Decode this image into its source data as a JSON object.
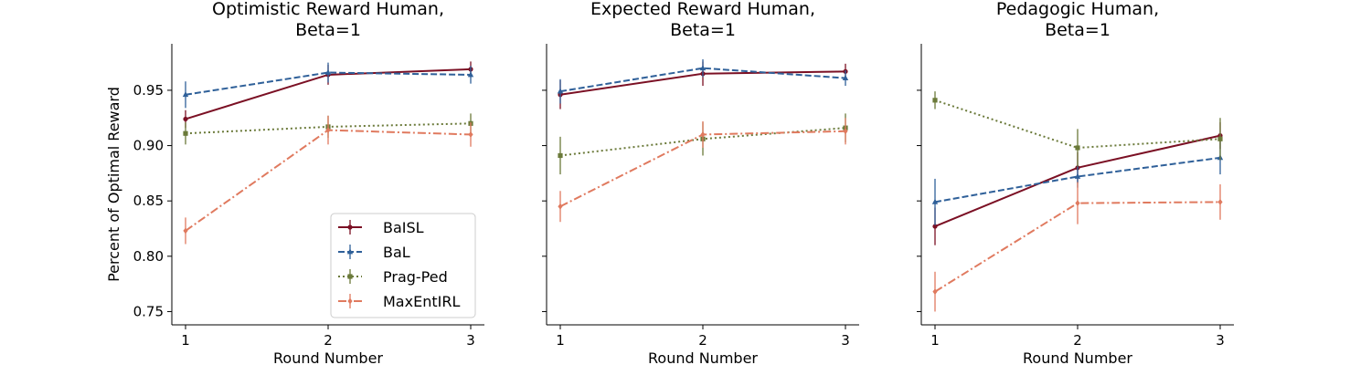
{
  "chart_data": [
    {
      "type": "line",
      "title_lines": [
        "Optimistic Reward Human,",
        "Beta=1"
      ],
      "xlabel": "Round Number",
      "ylabel": "Percent of Optimal Reward",
      "x": [
        1,
        2,
        3
      ],
      "x_ticks": [
        "1",
        "2",
        "3"
      ],
      "ylim": [
        0.738,
        0.992
      ],
      "y_ticks": [
        "0.75",
        "0.80",
        "0.85",
        "0.90",
        "0.95"
      ],
      "show_y_tick_labels": true,
      "legend": "lower-right",
      "series": [
        {
          "name": "BaISL",
          "color": "#7b1024",
          "dash": "solid",
          "marker": "circle",
          "values": [
            0.924,
            0.964,
            0.969
          ],
          "errors": [
            0.008,
            0.009,
            0.007
          ]
        },
        {
          "name": "BaL",
          "color": "#2f6099",
          "dash": "dashed",
          "marker": "triangle",
          "values": [
            0.946,
            0.966,
            0.964
          ],
          "errors": [
            0.012,
            0.009,
            0.008
          ]
        },
        {
          "name": "Prag-Ped",
          "color": "#6b7a3a",
          "dash": "dotted",
          "marker": "square",
          "values": [
            0.911,
            0.917,
            0.92
          ],
          "errors": [
            0.01,
            0.01,
            0.009
          ]
        },
        {
          "name": "MaxEntIRL",
          "color": "#e07a5f",
          "dash": "dashdot",
          "marker": "diamond",
          "values": [
            0.823,
            0.914,
            0.91
          ],
          "errors": [
            0.012,
            0.013,
            0.011
          ]
        }
      ]
    },
    {
      "type": "line",
      "title_lines": [
        "Expected Reward Human,",
        "Beta=1"
      ],
      "xlabel": "Round Number",
      "ylabel": "",
      "x": [
        1,
        2,
        3
      ],
      "x_ticks": [
        "1",
        "2",
        "3"
      ],
      "ylim": [
        0.738,
        0.992
      ],
      "y_ticks": [
        "0.75",
        "0.80",
        "0.85",
        "0.90",
        "0.95"
      ],
      "show_y_tick_labels": false,
      "series": [
        {
          "name": "BaISL",
          "color": "#7b1024",
          "dash": "solid",
          "marker": "circle",
          "values": [
            0.946,
            0.965,
            0.967
          ],
          "errors": [
            0.013,
            0.011,
            0.007
          ]
        },
        {
          "name": "BaL",
          "color": "#2f6099",
          "dash": "dashed",
          "marker": "triangle",
          "values": [
            0.949,
            0.97,
            0.961
          ],
          "errors": [
            0.011,
            0.008,
            0.007
          ]
        },
        {
          "name": "Prag-Ped",
          "color": "#6b7a3a",
          "dash": "dotted",
          "marker": "square",
          "values": [
            0.891,
            0.906,
            0.916
          ],
          "errors": [
            0.017,
            0.015,
            0.013
          ]
        },
        {
          "name": "MaxEntIRL",
          "color": "#e07a5f",
          "dash": "dashdot",
          "marker": "diamond",
          "values": [
            0.845,
            0.91,
            0.913
          ],
          "errors": [
            0.014,
            0.012,
            0.012
          ]
        }
      ]
    },
    {
      "type": "line",
      "title_lines": [
        "Pedagogic Human,",
        "Beta=1"
      ],
      "xlabel": "Round Number",
      "ylabel": "",
      "x": [
        1,
        2,
        3
      ],
      "x_ticks": [
        "1",
        "2",
        "3"
      ],
      "ylim": [
        0.738,
        0.992
      ],
      "y_ticks": [
        "0.75",
        "0.80",
        "0.85",
        "0.90",
        "0.95"
      ],
      "show_y_tick_labels": false,
      "series": [
        {
          "name": "BaISL",
          "color": "#7b1024",
          "dash": "solid",
          "marker": "circle",
          "values": [
            0.827,
            0.88,
            0.909
          ],
          "errors": [
            0.017,
            0.014,
            0.012
          ]
        },
        {
          "name": "BaL",
          "color": "#2f6099",
          "dash": "dashed",
          "marker": "triangle",
          "values": [
            0.849,
            0.872,
            0.889
          ],
          "errors": [
            0.021,
            0.01,
            0.015
          ]
        },
        {
          "name": "Prag-Ped",
          "color": "#6b7a3a",
          "dash": "dotted",
          "marker": "square",
          "values": [
            0.941,
            0.898,
            0.906
          ],
          "errors": [
            0.008,
            0.017,
            0.019
          ]
        },
        {
          "name": "MaxEntIRL",
          "color": "#e07a5f",
          "dash": "dashdot",
          "marker": "diamond",
          "values": [
            0.768,
            0.848,
            0.849
          ],
          "errors": [
            0.018,
            0.019,
            0.016
          ]
        }
      ]
    }
  ]
}
